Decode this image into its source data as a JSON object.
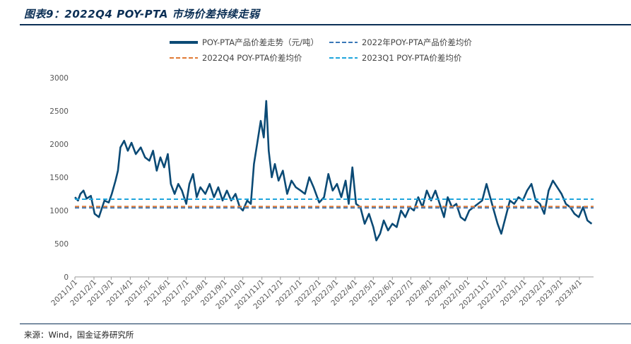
{
  "header": {
    "title": "图表9：2022Q4 POY-PTA 市场价差持续走弱"
  },
  "footer": {
    "source": "来源：Wind，国金证券研究所"
  },
  "colors": {
    "main_line": "#0b4a75",
    "avg_2022": "#3a78b8",
    "avg_2022q4": "#e07a35",
    "avg_2023q1": "#1fa5dc"
  },
  "chart_data": {
    "type": "line",
    "title": "",
    "ylim": [
      0,
      3000
    ],
    "yticks": [
      "0",
      "500",
      "1000",
      "1500",
      "2000",
      "2500",
      "3000"
    ],
    "xticks": [
      "2021/1/1",
      "2021/2/1",
      "2021/3/1",
      "2021/4/1",
      "2021/5/1",
      "2021/6/1",
      "2021/7/1",
      "2021/8/1",
      "2021/9/1",
      "2021/10/1",
      "2021/11/1",
      "2021/12/1",
      "2022/1/1",
      "2022/2/1",
      "2022/3/1",
      "2022/4/1",
      "2022/5/1",
      "2022/6/1",
      "2022/7/1",
      "2022/8/1",
      "2022/9/1",
      "2022/10/1",
      "2022/11/1",
      "2022/12/1",
      "2023/1/1",
      "2023/2/1",
      "2023/3/1",
      "2023/4/1"
    ],
    "grid": false,
    "legend_position": "top",
    "series": [
      {
        "name": "POY-PTA产品价差走势（元/吨）",
        "style": "solid",
        "points": [
          [
            "2021-01-01",
            1200
          ],
          [
            "2021-01-06",
            1150
          ],
          [
            "2021-01-10",
            1250
          ],
          [
            "2021-01-15",
            1300
          ],
          [
            "2021-01-20",
            1180
          ],
          [
            "2021-01-27",
            1220
          ],
          [
            "2021-02-02",
            950
          ],
          [
            "2021-02-09",
            900
          ],
          [
            "2021-02-18",
            1150
          ],
          [
            "2021-02-25",
            1120
          ],
          [
            "2021-03-02",
            1250
          ],
          [
            "2021-03-08",
            1450
          ],
          [
            "2021-03-12",
            1600
          ],
          [
            "2021-03-16",
            1950
          ],
          [
            "2021-03-22",
            2050
          ],
          [
            "2021-03-28",
            1900
          ],
          [
            "2021-04-03",
            2020
          ],
          [
            "2021-04-10",
            1850
          ],
          [
            "2021-04-18",
            1950
          ],
          [
            "2021-04-25",
            1800
          ],
          [
            "2021-05-02",
            1750
          ],
          [
            "2021-05-08",
            1900
          ],
          [
            "2021-05-14",
            1600
          ],
          [
            "2021-05-20",
            1800
          ],
          [
            "2021-05-26",
            1650
          ],
          [
            "2021-06-01",
            1850
          ],
          [
            "2021-06-06",
            1400
          ],
          [
            "2021-06-12",
            1250
          ],
          [
            "2021-06-18",
            1400
          ],
          [
            "2021-06-24",
            1300
          ],
          [
            "2021-07-01",
            1100
          ],
          [
            "2021-07-06",
            1400
          ],
          [
            "2021-07-12",
            1550
          ],
          [
            "2021-07-18",
            1200
          ],
          [
            "2021-07-24",
            1350
          ],
          [
            "2021-08-01",
            1250
          ],
          [
            "2021-08-08",
            1400
          ],
          [
            "2021-08-15",
            1200
          ],
          [
            "2021-08-22",
            1350
          ],
          [
            "2021-08-29",
            1150
          ],
          [
            "2021-09-05",
            1300
          ],
          [
            "2021-09-12",
            1150
          ],
          [
            "2021-09-19",
            1250
          ],
          [
            "2021-09-26",
            1050
          ],
          [
            "2021-10-01",
            1000
          ],
          [
            "2021-10-08",
            1150
          ],
          [
            "2021-10-14",
            1100
          ],
          [
            "2021-10-19",
            1700
          ],
          [
            "2021-10-25",
            2050
          ],
          [
            "2021-10-30",
            2350
          ],
          [
            "2021-11-04",
            2100
          ],
          [
            "2021-11-08",
            2650
          ],
          [
            "2021-11-12",
            1900
          ],
          [
            "2021-11-17",
            1500
          ],
          [
            "2021-11-22",
            1700
          ],
          [
            "2021-11-28",
            1450
          ],
          [
            "2021-12-05",
            1600
          ],
          [
            "2021-12-12",
            1250
          ],
          [
            "2021-12-19",
            1450
          ],
          [
            "2021-12-26",
            1350
          ],
          [
            "2022-01-03",
            1300
          ],
          [
            "2022-01-10",
            1250
          ],
          [
            "2022-01-17",
            1500
          ],
          [
            "2022-01-24",
            1350
          ],
          [
            "2022-02-02",
            1120
          ],
          [
            "2022-02-10",
            1200
          ],
          [
            "2022-02-17",
            1550
          ],
          [
            "2022-02-24",
            1300
          ],
          [
            "2022-03-03",
            1400
          ],
          [
            "2022-03-10",
            1200
          ],
          [
            "2022-03-17",
            1450
          ],
          [
            "2022-03-22",
            1100
          ],
          [
            "2022-03-28",
            1650
          ],
          [
            "2022-04-03",
            1100
          ],
          [
            "2022-04-10",
            1050
          ],
          [
            "2022-04-17",
            800
          ],
          [
            "2022-04-24",
            950
          ],
          [
            "2022-05-01",
            750
          ],
          [
            "2022-05-06",
            550
          ],
          [
            "2022-05-12",
            650
          ],
          [
            "2022-05-18",
            850
          ],
          [
            "2022-05-25",
            700
          ],
          [
            "2022-06-01",
            800
          ],
          [
            "2022-06-08",
            750
          ],
          [
            "2022-06-15",
            1000
          ],
          [
            "2022-06-22",
            900
          ],
          [
            "2022-06-29",
            1050
          ],
          [
            "2022-07-06",
            1000
          ],
          [
            "2022-07-13",
            1200
          ],
          [
            "2022-07-20",
            1050
          ],
          [
            "2022-07-27",
            1300
          ],
          [
            "2022-08-03",
            1150
          ],
          [
            "2022-08-10",
            1300
          ],
          [
            "2022-08-17",
            1100
          ],
          [
            "2022-08-24",
            900
          ],
          [
            "2022-08-30",
            1200
          ],
          [
            "2022-09-06",
            1050
          ],
          [
            "2022-09-13",
            1100
          ],
          [
            "2022-09-20",
            900
          ],
          [
            "2022-09-27",
            850
          ],
          [
            "2022-10-04",
            1000
          ],
          [
            "2022-10-11",
            1050
          ],
          [
            "2022-10-18",
            1100
          ],
          [
            "2022-10-25",
            1150
          ],
          [
            "2022-11-01",
            1400
          ],
          [
            "2022-11-07",
            1200
          ],
          [
            "2022-11-13",
            1000
          ],
          [
            "2022-11-19",
            800
          ],
          [
            "2022-11-25",
            650
          ],
          [
            "2022-12-02",
            900
          ],
          [
            "2022-12-09",
            1150
          ],
          [
            "2022-12-16",
            1100
          ],
          [
            "2022-12-23",
            1200
          ],
          [
            "2022-12-30",
            1150
          ],
          [
            "2023-01-06",
            1300
          ],
          [
            "2023-01-13",
            1400
          ],
          [
            "2023-01-20",
            1150
          ],
          [
            "2023-01-27",
            1100
          ],
          [
            "2023-02-03",
            950
          ],
          [
            "2023-02-10",
            1300
          ],
          [
            "2023-02-17",
            1450
          ],
          [
            "2023-02-24",
            1350
          ],
          [
            "2023-03-03",
            1250
          ],
          [
            "2023-03-10",
            1100
          ],
          [
            "2023-03-17",
            1050
          ],
          [
            "2023-03-24",
            950
          ],
          [
            "2023-03-31",
            900
          ],
          [
            "2023-04-07",
            1050
          ],
          [
            "2023-04-14",
            850
          ],
          [
            "2023-04-21",
            800
          ]
        ]
      },
      {
        "name": "2022年POY-PTA产品价差均价",
        "style": "dashed",
        "value": 1040
      },
      {
        "name": "2022Q4 POY-PTA价差均价",
        "style": "dashed",
        "value": 1060
      },
      {
        "name": "2023Q1 POY-PTA价差均价",
        "style": "dashed",
        "value": 1170
      }
    ]
  }
}
